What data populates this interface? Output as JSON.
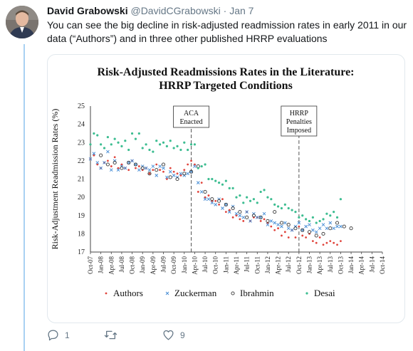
{
  "tweet": {
    "name": "David Grabowski",
    "handle": "@DavidCGrabowski",
    "separator": "·",
    "date": "Jan 7",
    "text": "You can see the big decline in risk-adjusted readmission rates in early 2011 in our data (“Authors”) and in three other published HRRP evaluations"
  },
  "actions": {
    "reply_count": "1",
    "retweet_count": "",
    "like_count": "9"
  },
  "icons": {
    "reply": "reply-icon",
    "retweet": "retweet-icon",
    "like": "heart-icon"
  },
  "colors": {
    "authors": "#e0443c",
    "zuckerman": "#4a8fd6",
    "ibrahmin": "#333333",
    "desai": "#3dbd91",
    "thread": "#a9d1f2"
  },
  "chart_data": {
    "type": "scatter",
    "title": "Risk-Adjusted Readmissions Rates in the Literature:",
    "subtitle": "HRRP Targeted Conditions",
    "ylabel": "Risk-Adjustment Readmission Rates (%)",
    "xlabel": "",
    "ylim": [
      17,
      25
    ],
    "yticks": [
      "17",
      "18",
      "19",
      "20",
      "21",
      "22",
      "23",
      "24",
      "25"
    ],
    "xticks": [
      "Oct-07",
      "Jan-08",
      "Apr-08",
      "Jul-08",
      "Oct-08",
      "Jan-09",
      "Apr-09",
      "Jul-09",
      "Oct-09",
      "Jan-10",
      "Apr-10",
      "Jul-10",
      "Oct-10",
      "Jan-11",
      "Apr-11",
      "Jul-11",
      "Oct-11",
      "Jan-12",
      "Apr-12",
      "Jul-12",
      "Oct-12",
      "Jan-13",
      "Apr-13",
      "Jul-13",
      "Oct-13",
      "Jan-14",
      "Apr-14",
      "Jul-14",
      "Oct-14"
    ],
    "annotations": [
      {
        "label1": "ACA",
        "label2": "Enacted",
        "label3": "",
        "x": "Mar-10"
      },
      {
        "label1": "HRRP",
        "label2": "Penalties",
        "label3": "Imposed",
        "x": "Oct-12"
      }
    ],
    "grid": false,
    "legend_position": "bottom",
    "series": [
      {
        "name": "Authors",
        "marker": "•",
        "start": "Oct-07",
        "values": [
          22.1,
          22.3,
          21.8,
          21.6,
          21.9,
          22.0,
          21.7,
          22.2,
          21.6,
          21.8,
          21.6,
          21.5,
          22.0,
          21.6,
          21.7,
          21.5,
          21.6,
          21.3,
          21.5,
          21.8,
          21.5,
          21.4,
          21.0,
          21.6,
          21.4,
          21.3,
          21.2,
          21.5,
          21.8,
          22.0,
          21.8,
          20.3,
          20.8,
          20.0,
          20.1,
          19.8,
          19.8,
          19.6,
          19.9,
          19.2,
          19.3,
          18.9,
          19.0,
          18.8,
          18.7,
          19.2,
          18.7,
          18.9,
          18.9,
          18.7,
          18.8,
          18.6,
          18.4,
          18.2,
          18.3,
          17.9,
          18.1,
          17.8,
          18.2,
          17.8,
          18.4,
          17.9,
          17.8,
          18.0,
          17.6,
          17.5,
          17.8,
          17.4,
          17.5,
          17.6,
          17.5,
          17.4,
          17.6
        ]
      },
      {
        "name": "Zuckerman",
        "marker": "×",
        "start": "Oct-07",
        "values": [
          22.1,
          22.4,
          21.9,
          21.6,
          21.9,
          22.5,
          21.5,
          22.0,
          21.5,
          21.7,
          21.6,
          21.9,
          22.0,
          21.8,
          21.5,
          21.7,
          21.6,
          21.5,
          21.7,
          21.2,
          21.7,
          21.6,
          21.1,
          21.4,
          21.2,
          21.1,
          21.3,
          21.2,
          21.3,
          21.4,
          21.7,
          20.8,
          20.3,
          19.9,
          19.9,
          19.7,
          19.6,
          19.9,
          19.4,
          19.6,
          19.2,
          19.5,
          19.1,
          19.0,
          18.9,
          19.2,
          18.7,
          19.1,
          18.9,
          18.9,
          19.1,
          18.5,
          18.7,
          18.6,
          18.5,
          18.4,
          18.6,
          18.3,
          18.2,
          18.4,
          18.6,
          18.2,
          18.4,
          18.5,
          18.2,
          18.1,
          18.3,
          18.5,
          18.3,
          18.6,
          18.3,
          18.4,
          18.4
        ]
      },
      {
        "name": "Ibrahmin",
        "marker": "∘",
        "start": "Jan-08",
        "values": [
          22.3,
          21.8,
          21.9,
          21.6,
          21.9,
          21.8,
          21.6,
          21.3,
          21.5,
          21.8,
          21.1,
          21.0,
          21.3,
          21.4,
          21.7,
          20.3,
          19.9,
          19.8,
          19.6,
          19.4,
          19.2,
          18.9,
          19.0,
          18.9,
          18.7,
          19.2,
          18.6,
          18.5,
          18.3,
          18.2,
          18.1,
          17.9,
          18.0,
          18.3,
          18.6,
          18.4,
          18.3
        ]
      },
      {
        "name": "Desai",
        "marker": "•",
        "start": "Oct-07",
        "values": [
          22.9,
          23.5,
          23.4,
          22.9,
          22.7,
          23.3,
          22.9,
          23.2,
          23.0,
          22.8,
          23.1,
          22.6,
          23.5,
          23.2,
          23.5,
          22.7,
          22.9,
          22.6,
          22.5,
          23.1,
          22.9,
          23.0,
          22.8,
          23.1,
          22.7,
          22.8,
          22.6,
          23.0,
          22.6,
          22.9,
          22.9,
          21.6,
          21.7,
          21.8,
          21.0,
          21.0,
          20.9,
          20.8,
          20.7,
          20.9,
          20.5,
          20.5,
          20.0,
          20.1,
          19.7,
          20.0,
          19.8,
          19.9,
          19.7,
          20.3,
          20.4,
          20.0,
          19.9,
          19.6,
          19.5,
          19.4,
          19.6,
          19.4,
          19.3,
          19.2,
          18.9,
          19.0,
          18.8,
          18.7,
          18.9,
          18.6,
          18.7,
          18.8,
          19.1,
          19.0,
          19.2,
          18.9,
          19.9
        ]
      }
    ]
  }
}
